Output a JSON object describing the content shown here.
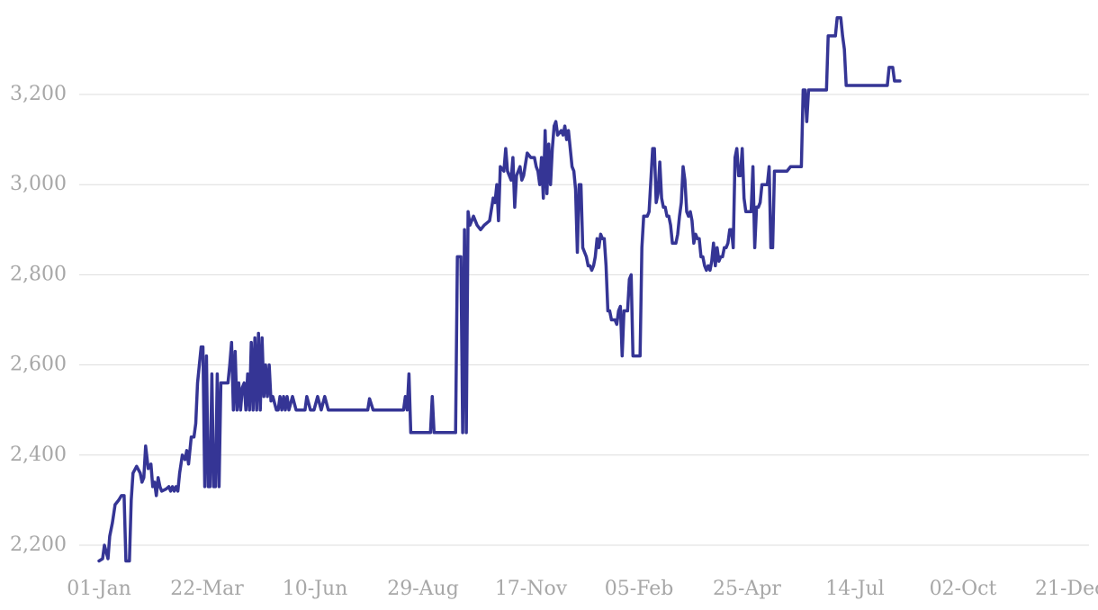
{
  "chart_data": {
    "type": "line",
    "title": "",
    "xlabel": "",
    "ylabel": "",
    "x_ticks": [
      "01-Jan",
      "22-Mar",
      "10-Jun",
      "29-Aug",
      "17-Nov",
      "05-Feb",
      "25-Apr",
      "14-Jul",
      "02-Oct",
      "21-Dec"
    ],
    "y_ticks": [
      "2,200",
      "2,400",
      "2,600",
      "2,800",
      "3,000",
      "3,200"
    ],
    "ylim": [
      2160,
      3380
    ],
    "xlim_days": [
      0,
      1085
    ],
    "grid": true,
    "legend": "none",
    "colors": {
      "line": "#353595",
      "grid": "#dddddd",
      "tick_text": "#a7a7a7"
    },
    "series": [
      {
        "points": [
          [
            0,
            2165
          ],
          [
            4,
            2170
          ],
          [
            6,
            2200
          ],
          [
            8,
            2185
          ],
          [
            10,
            2170
          ],
          [
            12,
            2220
          ],
          [
            15,
            2250
          ],
          [
            18,
            2290
          ],
          [
            22,
            2300
          ],
          [
            25,
            2310
          ],
          [
            28,
            2310
          ],
          [
            30,
            2165
          ],
          [
            34,
            2165
          ],
          [
            36,
            2300
          ],
          [
            38,
            2360
          ],
          [
            42,
            2375
          ],
          [
            46,
            2360
          ],
          [
            48,
            2340
          ],
          [
            50,
            2350
          ],
          [
            52,
            2420
          ],
          [
            55,
            2370
          ],
          [
            58,
            2380
          ],
          [
            60,
            2330
          ],
          [
            62,
            2340
          ],
          [
            64,
            2310
          ],
          [
            66,
            2350
          ],
          [
            68,
            2330
          ],
          [
            70,
            2320
          ],
          [
            75,
            2325
          ],
          [
            78,
            2330
          ],
          [
            80,
            2320
          ],
          [
            82,
            2330
          ],
          [
            84,
            2320
          ],
          [
            86,
            2330
          ],
          [
            88,
            2320
          ],
          [
            90,
            2360
          ],
          [
            93,
            2400
          ],
          [
            96,
            2390
          ],
          [
            98,
            2410
          ],
          [
            100,
            2380
          ],
          [
            103,
            2440
          ],
          [
            106,
            2440
          ],
          [
            108,
            2470
          ],
          [
            110,
            2560
          ],
          [
            112,
            2600
          ],
          [
            114,
            2640
          ],
          [
            116,
            2640
          ],
          [
            118,
            2330
          ],
          [
            120,
            2620
          ],
          [
            122,
            2330
          ],
          [
            124,
            2330
          ],
          [
            126,
            2580
          ],
          [
            128,
            2330
          ],
          [
            130,
            2330
          ],
          [
            132,
            2580
          ],
          [
            134,
            2330
          ],
          [
            136,
            2560
          ],
          [
            140,
            2560
          ],
          [
            144,
            2560
          ],
          [
            146,
            2600
          ],
          [
            148,
            2650
          ],
          [
            150,
            2500
          ],
          [
            152,
            2630
          ],
          [
            154,
            2500
          ],
          [
            156,
            2560
          ],
          [
            158,
            2500
          ],
          [
            160,
            2550
          ],
          [
            162,
            2560
          ],
          [
            164,
            2500
          ],
          [
            166,
            2580
          ],
          [
            168,
            2500
          ],
          [
            170,
            2650
          ],
          [
            172,
            2500
          ],
          [
            174,
            2660
          ],
          [
            176,
            2500
          ],
          [
            178,
            2670
          ],
          [
            180,
            2500
          ],
          [
            182,
            2660
          ],
          [
            184,
            2530
          ],
          [
            186,
            2600
          ],
          [
            188,
            2530
          ],
          [
            190,
            2600
          ],
          [
            192,
            2520
          ],
          [
            194,
            2530
          ],
          [
            198,
            2500
          ],
          [
            200,
            2500
          ],
          [
            202,
            2530
          ],
          [
            204,
            2500
          ],
          [
            206,
            2530
          ],
          [
            208,
            2500
          ],
          [
            210,
            2530
          ],
          [
            212,
            2500
          ],
          [
            216,
            2530
          ],
          [
            220,
            2500
          ],
          [
            230,
            2500
          ],
          [
            232,
            2530
          ],
          [
            236,
            2500
          ],
          [
            240,
            2500
          ],
          [
            244,
            2530
          ],
          [
            248,
            2500
          ],
          [
            252,
            2530
          ],
          [
            256,
            2500
          ],
          [
            260,
            2500
          ],
          [
            300,
            2500
          ],
          [
            302,
            2525
          ],
          [
            306,
            2500
          ],
          [
            340,
            2500
          ],
          [
            342,
            2530
          ],
          [
            344,
            2500
          ],
          [
            346,
            2580
          ],
          [
            348,
            2450
          ],
          [
            370,
            2450
          ],
          [
            372,
            2530
          ],
          [
            374,
            2450
          ],
          [
            398,
            2450
          ],
          [
            400,
            2840
          ],
          [
            404,
            2840
          ],
          [
            406,
            2450
          ],
          [
            408,
            2900
          ],
          [
            410,
            2450
          ],
          [
            412,
            2940
          ],
          [
            414,
            2910
          ],
          [
            418,
            2930
          ],
          [
            422,
            2910
          ],
          [
            426,
            2900
          ],
          [
            430,
            2910
          ],
          [
            436,
            2920
          ],
          [
            440,
            2970
          ],
          [
            442,
            2960
          ],
          [
            444,
            3000
          ],
          [
            446,
            2920
          ],
          [
            448,
            3040
          ],
          [
            452,
            3030
          ],
          [
            454,
            3080
          ],
          [
            456,
            3030
          ],
          [
            460,
            3010
          ],
          [
            462,
            3060
          ],
          [
            464,
            2950
          ],
          [
            466,
            3020
          ],
          [
            470,
            3040
          ],
          [
            472,
            3010
          ],
          [
            474,
            3020
          ],
          [
            478,
            3070
          ],
          [
            482,
            3060
          ],
          [
            486,
            3060
          ],
          [
            488,
            3040
          ],
          [
            490,
            3030
          ],
          [
            492,
            3000
          ],
          [
            494,
            3060
          ],
          [
            496,
            2970
          ],
          [
            498,
            3120
          ],
          [
            500,
            2980
          ],
          [
            502,
            3090
          ],
          [
            504,
            3000
          ],
          [
            506,
            3080
          ],
          [
            508,
            3130
          ],
          [
            510,
            3140
          ],
          [
            512,
            3110
          ],
          [
            516,
            3120
          ],
          [
            518,
            3110
          ],
          [
            520,
            3130
          ],
          [
            522,
            3100
          ],
          [
            524,
            3120
          ],
          [
            526,
            3080
          ],
          [
            528,
            3040
          ],
          [
            530,
            3030
          ],
          [
            532,
            2990
          ],
          [
            534,
            2850
          ],
          [
            536,
            3000
          ],
          [
            538,
            3000
          ],
          [
            540,
            2860
          ],
          [
            542,
            2850
          ],
          [
            544,
            2840
          ],
          [
            546,
            2820
          ],
          [
            548,
            2820
          ],
          [
            550,
            2810
          ],
          [
            552,
            2820
          ],
          [
            554,
            2840
          ],
          [
            556,
            2880
          ],
          [
            558,
            2860
          ],
          [
            560,
            2890
          ],
          [
            562,
            2880
          ],
          [
            564,
            2880
          ],
          [
            566,
            2820
          ],
          [
            568,
            2720
          ],
          [
            570,
            2720
          ],
          [
            572,
            2700
          ],
          [
            574,
            2700
          ],
          [
            576,
            2700
          ],
          [
            578,
            2690
          ],
          [
            580,
            2720
          ],
          [
            582,
            2730
          ],
          [
            584,
            2620
          ],
          [
            586,
            2720
          ],
          [
            588,
            2720
          ],
          [
            590,
            2720
          ],
          [
            592,
            2790
          ],
          [
            594,
            2800
          ],
          [
            596,
            2620
          ],
          [
            600,
            2620
          ],
          [
            604,
            2620
          ],
          [
            606,
            2860
          ],
          [
            608,
            2930
          ],
          [
            612,
            2930
          ],
          [
            614,
            2940
          ],
          [
            616,
            3010
          ],
          [
            618,
            3080
          ],
          [
            620,
            3080
          ],
          [
            622,
            2960
          ],
          [
            624,
            2980
          ],
          [
            626,
            3050
          ],
          [
            628,
            2970
          ],
          [
            630,
            2950
          ],
          [
            632,
            2950
          ],
          [
            634,
            2930
          ],
          [
            636,
            2930
          ],
          [
            638,
            2910
          ],
          [
            640,
            2870
          ],
          [
            642,
            2870
          ],
          [
            644,
            2870
          ],
          [
            646,
            2890
          ],
          [
            648,
            2930
          ],
          [
            650,
            2960
          ],
          [
            652,
            3040
          ],
          [
            654,
            3010
          ],
          [
            656,
            2940
          ],
          [
            658,
            2930
          ],
          [
            660,
            2940
          ],
          [
            662,
            2920
          ],
          [
            664,
            2870
          ],
          [
            666,
            2890
          ],
          [
            668,
            2880
          ],
          [
            670,
            2880
          ],
          [
            672,
            2840
          ],
          [
            674,
            2840
          ],
          [
            676,
            2820
          ],
          [
            678,
            2810
          ],
          [
            680,
            2820
          ],
          [
            682,
            2810
          ],
          [
            684,
            2830
          ],
          [
            686,
            2870
          ],
          [
            688,
            2820
          ],
          [
            690,
            2860
          ],
          [
            692,
            2830
          ],
          [
            694,
            2840
          ],
          [
            696,
            2840
          ],
          [
            698,
            2860
          ],
          [
            700,
            2860
          ],
          [
            702,
            2870
          ],
          [
            704,
            2900
          ],
          [
            706,
            2900
          ],
          [
            708,
            2860
          ],
          [
            710,
            3060
          ],
          [
            712,
            3080
          ],
          [
            714,
            3020
          ],
          [
            716,
            3020
          ],
          [
            718,
            3080
          ],
          [
            720,
            2970
          ],
          [
            722,
            2940
          ],
          [
            724,
            2940
          ],
          [
            726,
            2940
          ],
          [
            728,
            2940
          ],
          [
            730,
            3040
          ],
          [
            732,
            2860
          ],
          [
            734,
            2950
          ],
          [
            736,
            2950
          ],
          [
            738,
            2960
          ],
          [
            740,
            3000
          ],
          [
            742,
            3000
          ],
          [
            744,
            3000
          ],
          [
            746,
            3000
          ],
          [
            748,
            3040
          ],
          [
            750,
            2860
          ],
          [
            752,
            2860
          ],
          [
            754,
            3030
          ],
          [
            758,
            3030
          ],
          [
            768,
            3030
          ],
          [
            772,
            3040
          ],
          [
            780,
            3040
          ],
          [
            784,
            3040
          ],
          [
            786,
            3210
          ],
          [
            788,
            3210
          ],
          [
            790,
            3140
          ],
          [
            792,
            3210
          ],
          [
            796,
            3210
          ],
          [
            800,
            3210
          ],
          [
            810,
            3210
          ],
          [
            812,
            3210
          ],
          [
            814,
            3330
          ],
          [
            818,
            3330
          ],
          [
            822,
            3330
          ],
          [
            824,
            3370
          ],
          [
            828,
            3370
          ],
          [
            830,
            3330
          ],
          [
            832,
            3300
          ],
          [
            834,
            3220
          ],
          [
            840,
            3220
          ],
          [
            850,
            3220
          ],
          [
            870,
            3220
          ],
          [
            880,
            3220
          ],
          [
            882,
            3260
          ],
          [
            886,
            3260
          ],
          [
            888,
            3230
          ],
          [
            890,
            3230
          ],
          [
            894,
            3230
          ]
        ]
      }
    ]
  }
}
